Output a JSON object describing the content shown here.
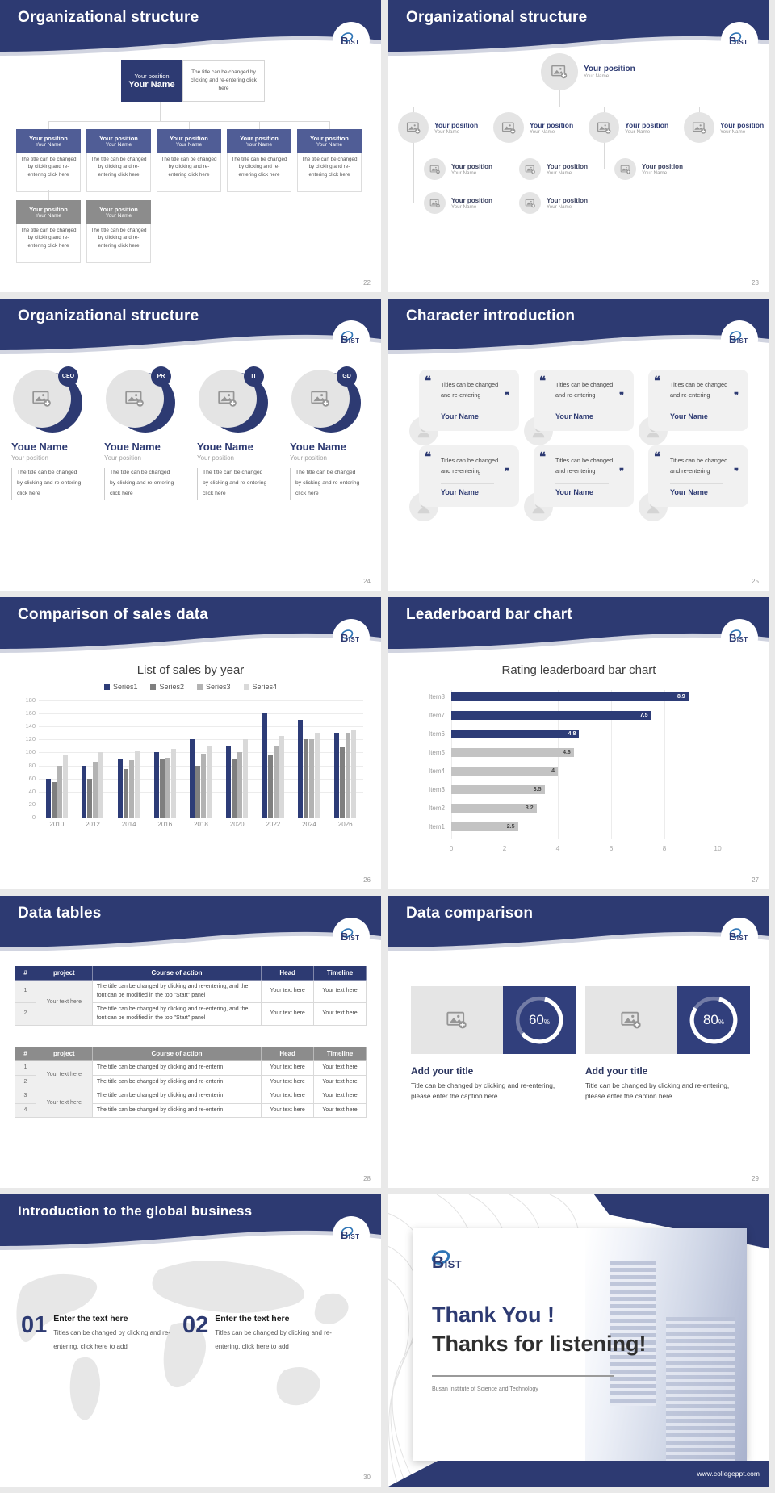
{
  "common": {
    "logo": "BIST",
    "position": "Your position",
    "name": "Your Name",
    "change": "The title can be changed by clicking and re-entering click here",
    "cell": "Your text here"
  },
  "slides": {
    "s22": {
      "title": "Organizational structure",
      "page": "22"
    },
    "s23": {
      "title": "Organizational structure",
      "page": "23"
    },
    "s24": {
      "title": "Organizational structure",
      "page": "24",
      "badges": [
        "CEO",
        "PR",
        "IT",
        "GD"
      ],
      "person_name": "Youe Name",
      "person_role": "Your position"
    },
    "s25": {
      "title": "Character introduction",
      "page": "25",
      "open_quote": "❝",
      "close_quote": "❞",
      "quote": "Titles can be changed and re-entering",
      "person": "Your Name"
    },
    "s26": {
      "title": "Comparison of sales data",
      "page": "26"
    },
    "s27": {
      "title": "Leaderboard bar chart",
      "page": "27"
    },
    "s28": {
      "title": "Data tables",
      "page": "28",
      "headers": [
        "#",
        "project",
        "Course of action",
        "Head",
        "Timeline"
      ],
      "t1_course": "The title can be changed by clicking and re-entering, and the font can be modified in the top \"Start\" panel",
      "t2_course": "The title can be changed by clicking and re-enterin",
      "n1": "1",
      "n2": "2",
      "n3": "3",
      "n4": "4"
    },
    "s29": {
      "title": "Data comparison",
      "page": "29",
      "pct_sign": "%",
      "items": [
        {
          "percent": 60,
          "percent_label": "60"
        },
        {
          "percent": 80,
          "percent_label": "80"
        }
      ],
      "item_title": "Add your title",
      "caption": "Title can be changed by clicking and re-entering, please enter the caption here"
    },
    "s30": {
      "title": "Introduction to the global business",
      "page": "30",
      "items": [
        {
          "num": "01"
        },
        {
          "num": "02"
        }
      ],
      "item_title": "Enter the text here",
      "item_text": "Titles can be changed by clicking and re-entering, click here to add"
    },
    "s31": {
      "line1": "Thank You !",
      "line2": "Thanks for listening!",
      "org": "Busan Institute of Science and Technology",
      "url": "www.collegeppt.com"
    }
  },
  "chart_data": [
    {
      "type": "bar",
      "title": "List of sales by year",
      "categories": [
        "2010",
        "2012",
        "2014",
        "2016",
        "2018",
        "2020",
        "2022",
        "2024",
        "2026"
      ],
      "series": [
        {
          "name": "Series1",
          "color": "#2d3c77",
          "values": [
            60,
            80,
            90,
            100,
            120,
            110,
            160,
            150,
            130
          ]
        },
        {
          "name": "Series2",
          "color": "#7f7f7f",
          "values": [
            55,
            60,
            75,
            90,
            80,
            90,
            95,
            120,
            108
          ]
        },
        {
          "name": "Series3",
          "color": "#b3b3b3",
          "values": [
            80,
            86,
            88,
            92,
            98,
            100,
            110,
            120,
            130
          ]
        },
        {
          "name": "Series4",
          "color": "#d9d9d9",
          "values": [
            95,
            100,
            102,
            105,
            110,
            120,
            125,
            130,
            135
          ]
        }
      ],
      "ylim": [
        0,
        180
      ],
      "ytick": 20,
      "grid": true,
      "legend_position": "top"
    },
    {
      "type": "bar-horizontal",
      "title": "Rating leaderboard bar chart",
      "categories": [
        "Item1",
        "Item2",
        "Item3",
        "Item4",
        "Item5",
        "Item6",
        "Item7",
        "Item8"
      ],
      "values": [
        2.5,
        3.2,
        3.5,
        4,
        4.6,
        4.8,
        7.5,
        8.9
      ],
      "bar_colors": [
        "#c3c3c3",
        "#c3c3c3",
        "#c3c3c3",
        "#c3c3c3",
        "#c3c3c3",
        "#2d3c77",
        "#2d3c77",
        "#2d3c77"
      ],
      "xlim": [
        0,
        10
      ],
      "xticks": [
        0,
        2,
        4,
        6,
        8,
        10
      ],
      "grid": true
    }
  ]
}
